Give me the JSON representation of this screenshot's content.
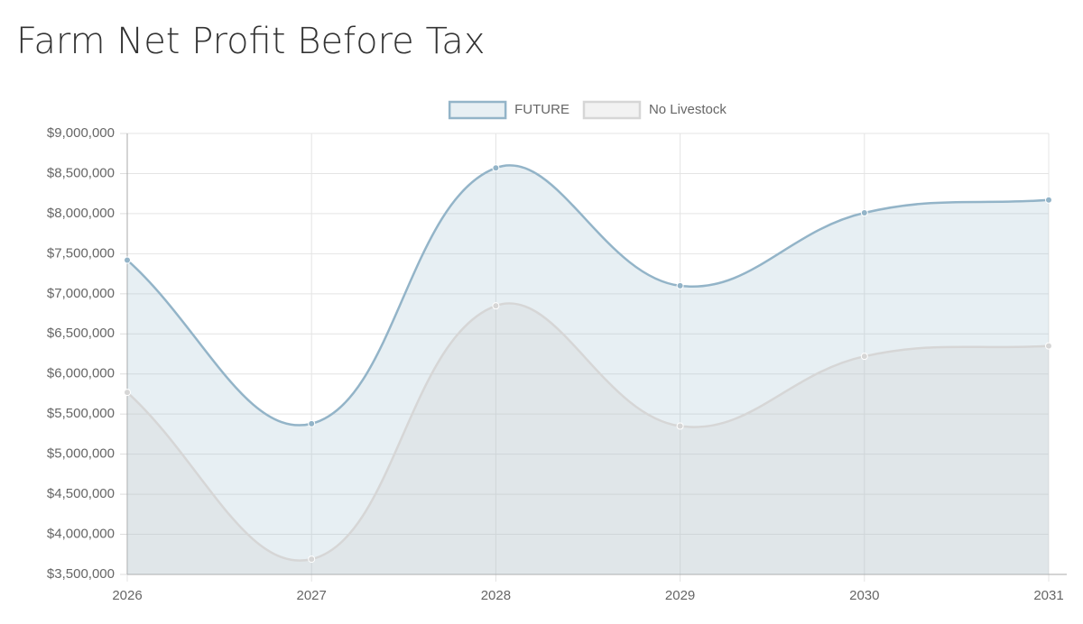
{
  "chart_data": {
    "type": "line",
    "title": "Farm Net Profit Before Tax",
    "categories": [
      "2026",
      "2027",
      "2028",
      "2029",
      "2030",
      "2031"
    ],
    "series": [
      {
        "name": "FUTURE",
        "color": "#93b4c8",
        "fill_color": "rgba(147,180,200,0.22)",
        "values": [
          7420000,
          5380000,
          8570000,
          7100000,
          8010000,
          8170000
        ]
      },
      {
        "name": "No Livestock",
        "color": "#d6d6d6",
        "fill_color": "rgba(205,205,205,0.25)",
        "values": [
          5770000,
          3690000,
          6850000,
          5350000,
          6220000,
          6350000
        ]
      }
    ],
    "ylim": [
      3500000,
      9000000
    ],
    "yticks": [
      {
        "value": 3500000,
        "label": "$3,500,000"
      },
      {
        "value": 4000000,
        "label": "$4,000,000"
      },
      {
        "value": 4500000,
        "label": "$4,500,000"
      },
      {
        "value": 5000000,
        "label": "$5,000,000"
      },
      {
        "value": 5500000,
        "label": "$5,500,000"
      },
      {
        "value": 6000000,
        "label": "$6,000,000"
      },
      {
        "value": 6500000,
        "label": "$6,500,000"
      },
      {
        "value": 7000000,
        "label": "$7,000,000"
      },
      {
        "value": 7500000,
        "label": "$7,500,000"
      },
      {
        "value": 8000000,
        "label": "$8,000,000"
      },
      {
        "value": 8500000,
        "label": "$8,500,000"
      },
      {
        "value": 9000000,
        "label": "$9,000,000"
      }
    ],
    "grid": true,
    "legend": "top"
  }
}
